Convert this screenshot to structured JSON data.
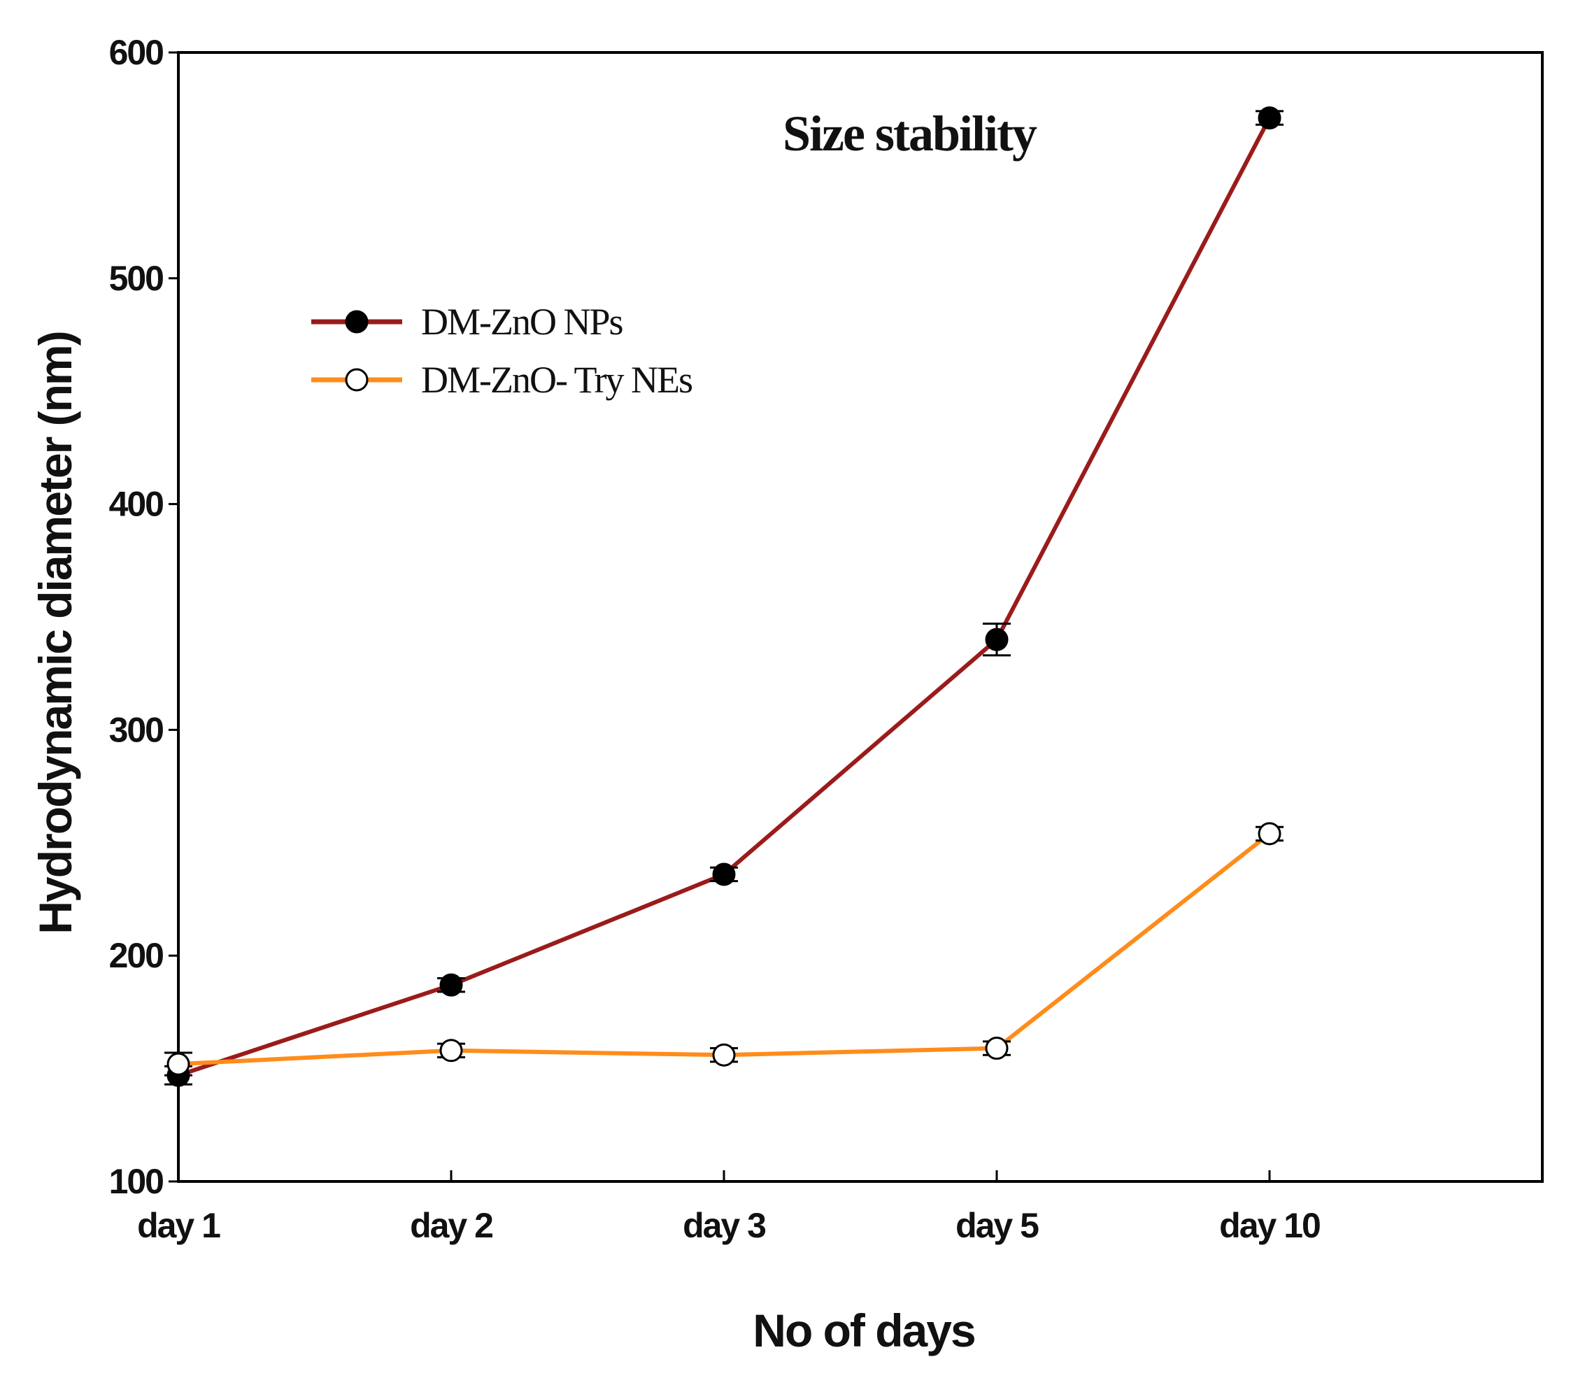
{
  "chart_data": {
    "type": "line",
    "title": "Size stability",
    "xlabel": "No of days",
    "ylabel": "Hydrodynamic diameter (nm)",
    "categories": [
      "day 1",
      "day 2",
      "day 3",
      "day 5",
      "day 10"
    ],
    "ylim": [
      100,
      600
    ],
    "yticks": [
      "100",
      "200",
      "300",
      "400",
      "500",
      "600"
    ],
    "grid": false,
    "legend_position": "upper-left",
    "series": [
      {
        "name": "DM-ZnO NPs",
        "color": "#9b1b1b",
        "marker": "filled-circle",
        "values": [
          147,
          187,
          236,
          340,
          571
        ],
        "errors": [
          4,
          3,
          3,
          7,
          3
        ]
      },
      {
        "name": "DM-ZnO- Try NEs",
        "color": "#ff8c1a",
        "marker": "open-circle",
        "values": [
          152,
          158,
          156,
          159,
          254
        ],
        "errors": [
          5,
          3,
          3,
          3,
          3
        ]
      }
    ]
  }
}
